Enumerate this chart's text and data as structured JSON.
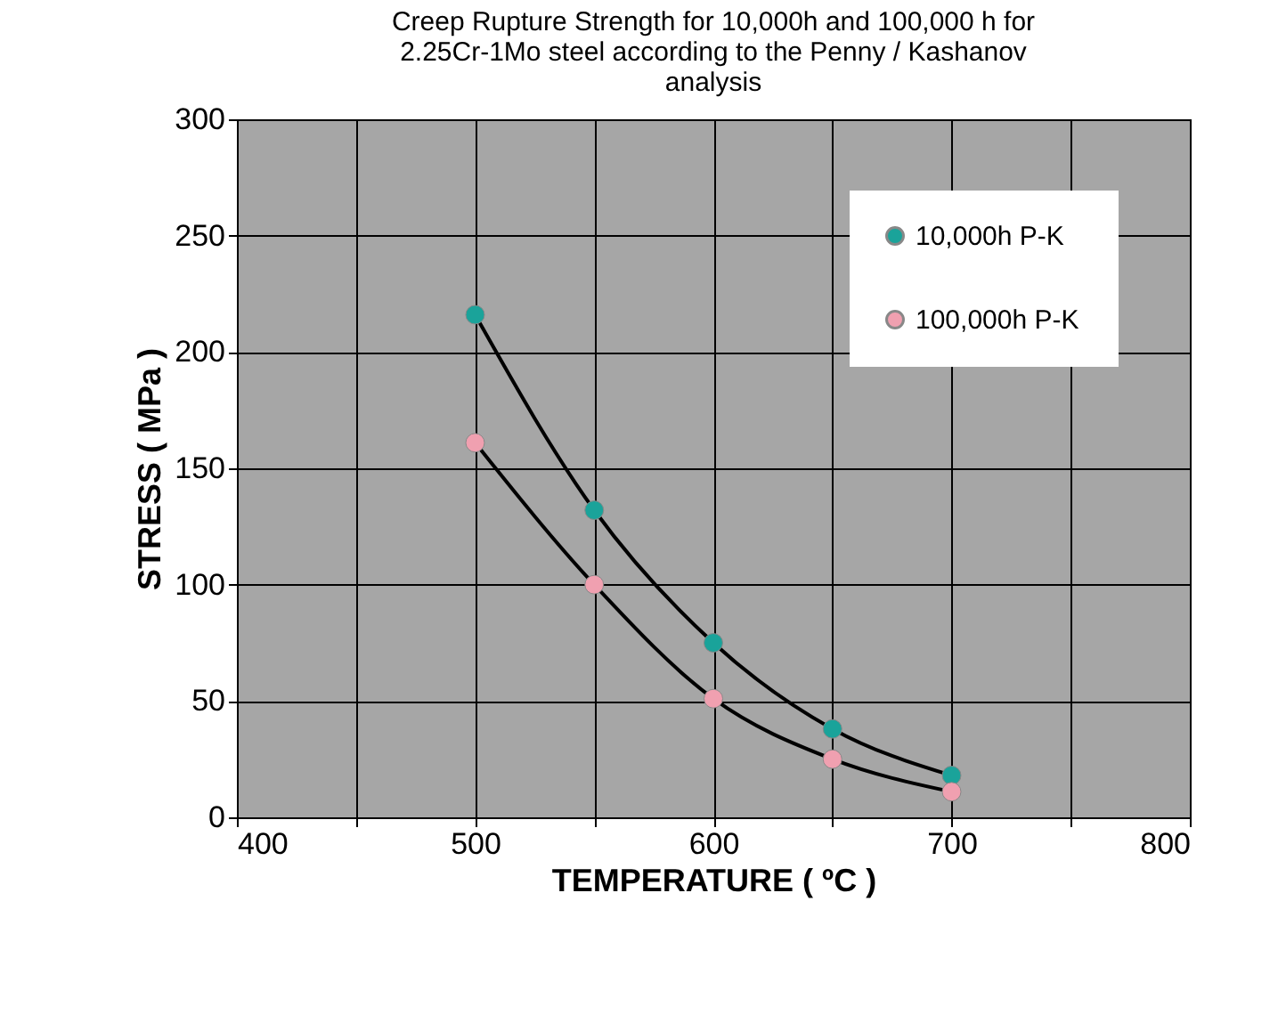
{
  "chart_data": {
    "type": "line",
    "title": "Creep Rupture Strength for 10,000h and 100,000 h for\n2.25Cr-1Mo steel  according to the  Penny / Kashanov\nanalysis",
    "xlabel": "TEMPERATURE ( ºC )",
    "ylabel": "STRESS  ( MPa )",
    "x": [
      500,
      550,
      600,
      650,
      700
    ],
    "series": [
      {
        "name": "10,000h  P-K",
        "color": "#1aa39a",
        "values": [
          216,
          132,
          75,
          38,
          18
        ]
      },
      {
        "name": "100,000h  P-K",
        "color": "#f0a0b0",
        "values": [
          161,
          100,
          51,
          25,
          11
        ]
      }
    ],
    "xlim": [
      400,
      800
    ],
    "xticks": [
      400,
      {
        "value": 450,
        "label": null
      },
      500,
      {
        "value": 550,
        "label": null
      },
      600,
      {
        "value": 650,
        "label": null
      },
      700,
      {
        "value": 750,
        "label": null
      },
      800
    ],
    "ylim": [
      0,
      300
    ],
    "yticks": [
      0,
      50,
      100,
      150,
      200,
      250,
      300
    ],
    "grid": true,
    "legend": "top right",
    "marker": "circle",
    "line_style": "solid"
  }
}
